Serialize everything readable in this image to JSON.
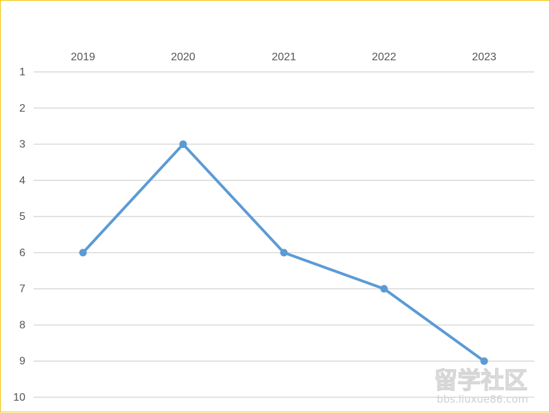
{
  "chart_data": {
    "type": "line",
    "title": "",
    "xlabel": "",
    "ylabel": "",
    "x": [
      "2019",
      "2020",
      "2021",
      "2022",
      "2023"
    ],
    "series": [
      {
        "values": [
          6,
          3,
          6,
          7,
          9
        ]
      }
    ],
    "ylim": [
      1,
      10
    ],
    "y_axis_reversed": true,
    "x_axis_position": "top",
    "y_ticks": [
      1,
      2,
      3,
      4,
      5,
      6,
      7,
      8,
      9,
      10
    ],
    "grid": true,
    "line_color": "#5b9bd5",
    "grid_color": "#d9d9d9",
    "border_color": "#f2c200"
  },
  "watermark": {
    "title": "留学社区",
    "url": "bbs.liuxue86.com"
  }
}
